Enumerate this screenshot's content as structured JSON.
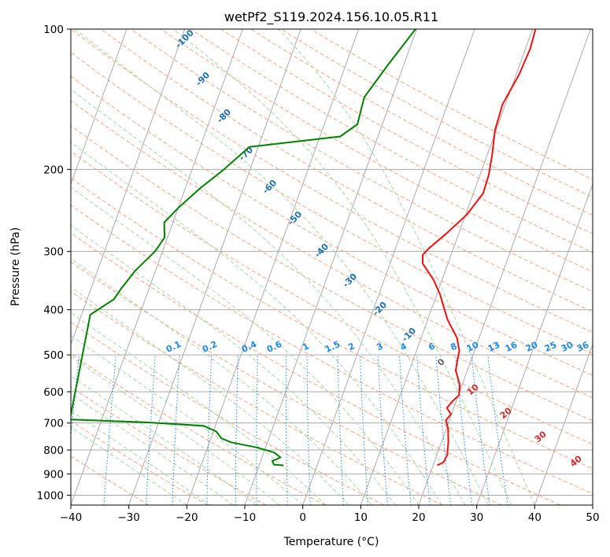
{
  "chart_data": {
    "type": "line",
    "chart_kind": "skew-T log-P diagram",
    "title": "wetPf2_S119.2024.156.10.05.R11",
    "xlabel": "Temperature (°C)",
    "ylabel": "Pressure (hPa)",
    "x_ticks": [
      "−40",
      "−30",
      "−20",
      "−10",
      "0",
      "10",
      "20",
      "30",
      "40",
      "50"
    ],
    "x_tick_values": [
      -40,
      -30,
      -20,
      -10,
      0,
      10,
      20,
      30,
      40,
      50
    ],
    "y_ticks": [
      "100",
      "200",
      "300",
      "400",
      "500",
      "600",
      "700",
      "800",
      "900",
      "1000"
    ],
    "y_tick_values": [
      100,
      200,
      300,
      400,
      500,
      600,
      700,
      800,
      900,
      1000
    ],
    "xlim": [
      -40,
      50
    ],
    "ylim": [
      1050,
      100
    ],
    "y_scale": "log",
    "grid": true,
    "colors": {
      "temperature": "#ee1111",
      "dewpoint": "#008000",
      "isotherm": "#aaaaaa",
      "dry_adiabat": "#f4a582",
      "moist_adiabat": "#a6d8a6",
      "mixing_ratio": "#1e88e5",
      "isotherm_label": "#1f6fb2",
      "wetbulb_label": "#d62728"
    },
    "series": [
      {
        "key": "temperature",
        "points": [
          [
            10.5,
            100
          ],
          [
            10.8,
            110
          ],
          [
            10.5,
            125
          ],
          [
            9.5,
            145
          ],
          [
            9.8,
            165
          ],
          [
            10.8,
            185
          ],
          [
            11.5,
            205
          ],
          [
            11.7,
            225
          ],
          [
            10.2,
            250
          ],
          [
            7.8,
            275
          ],
          [
            5.8,
            295
          ],
          [
            5.1,
            305
          ],
          [
            5.6,
            318
          ],
          [
            8.5,
            345
          ],
          [
            10.5,
            370
          ],
          [
            12.0,
            395
          ],
          [
            13.4,
            420
          ],
          [
            16.2,
            460
          ],
          [
            17.4,
            490
          ],
          [
            17.6,
            510
          ],
          [
            18.0,
            540
          ],
          [
            19.6,
            580
          ],
          [
            20.1,
            610
          ],
          [
            19.3,
            630
          ],
          [
            18.8,
            650
          ],
          [
            19.9,
            670
          ],
          [
            19.4,
            690
          ],
          [
            20.3,
            720
          ],
          [
            21.2,
            770
          ],
          [
            21.8,
            820
          ],
          [
            21.6,
            850
          ],
          [
            20.7,
            863
          ]
        ]
      },
      {
        "key": "dewpoint",
        "points": [
          [
            -10.2,
            100
          ],
          [
            -12.8,
            120
          ],
          [
            -14.8,
            140
          ],
          [
            -14.3,
            160
          ],
          [
            -16.5,
            170
          ],
          [
            -31.5,
            179
          ],
          [
            -34.5,
            200
          ],
          [
            -37.5,
            220
          ],
          [
            -40.0,
            242
          ],
          [
            -41.5,
            260
          ],
          [
            -40.5,
            280
          ],
          [
            -41.3,
            300
          ],
          [
            -43.5,
            330
          ],
          [
            -44.8,
            360
          ],
          [
            -45.4,
            380
          ],
          [
            -48.5,
            410
          ],
          [
            -45.5,
            688
          ],
          [
            -32.0,
            698
          ],
          [
            -22.0,
            710
          ],
          [
            -19.5,
            730
          ],
          [
            -18.2,
            755
          ],
          [
            -16.3,
            770
          ],
          [
            -11.5,
            790
          ],
          [
            -8.2,
            810
          ],
          [
            -6.8,
            830
          ],
          [
            -8.0,
            845
          ],
          [
            -7.5,
            860
          ],
          [
            -5.8,
            863
          ]
        ]
      }
    ],
    "isotherm_labels": [
      "-100",
      "-90",
      "-80",
      "-70",
      "-60",
      "-50",
      "-40",
      "-30",
      "-20",
      "-10",
      "0"
    ],
    "mixing_ratio_labels": [
      "0.1",
      "0.2",
      "0.4",
      "0.6",
      "1",
      "1.5",
      "2",
      "3",
      "4",
      "6",
      "8",
      "10",
      "13",
      "16",
      "20",
      "25",
      "30",
      "36"
    ],
    "wetbulb_labels": [
      "10",
      "20",
      "30",
      "40"
    ]
  }
}
